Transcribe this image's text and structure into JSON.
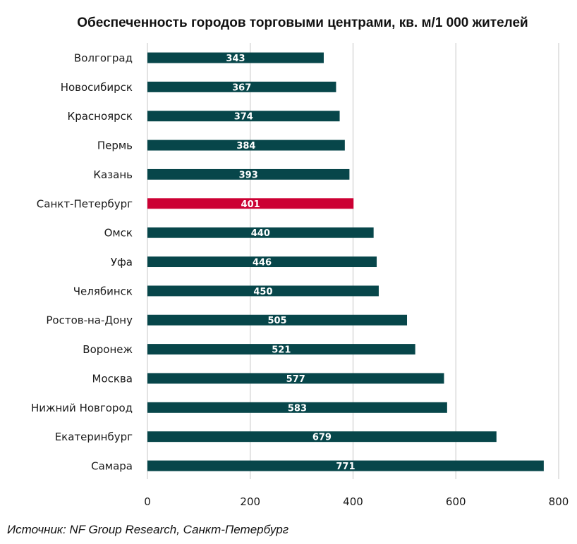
{
  "chart_data": {
    "type": "bar",
    "orientation": "horizontal",
    "title": "Обеспеченность городов торговыми центрами, кв. м/1 000 жителей",
    "categories": [
      "Волгоград",
      "Новосибирск",
      "Красноярск",
      "Пермь",
      "Казань",
      "Санкт-Петербург",
      "Омск",
      "Уфа",
      "Челябинск",
      "Ростов-на-Дону",
      "Воронеж",
      "Москва",
      "Нижний Новгород",
      "Екатеринбург",
      "Самара"
    ],
    "values": [
      343,
      367,
      374,
      384,
      393,
      401,
      440,
      446,
      450,
      505,
      521,
      577,
      583,
      679,
      771
    ],
    "highlight": "Санкт-Петербург",
    "xlim": [
      0,
      800
    ],
    "xticks": [
      0,
      200,
      400,
      600,
      800
    ],
    "grid": "vertical",
    "legend": "none",
    "colors": {
      "bar": "#07464a",
      "highlight": "#cc0033",
      "grid": "#d0d0d0"
    }
  },
  "source": "Источник: NF Group Research, Санкт-Петербург"
}
